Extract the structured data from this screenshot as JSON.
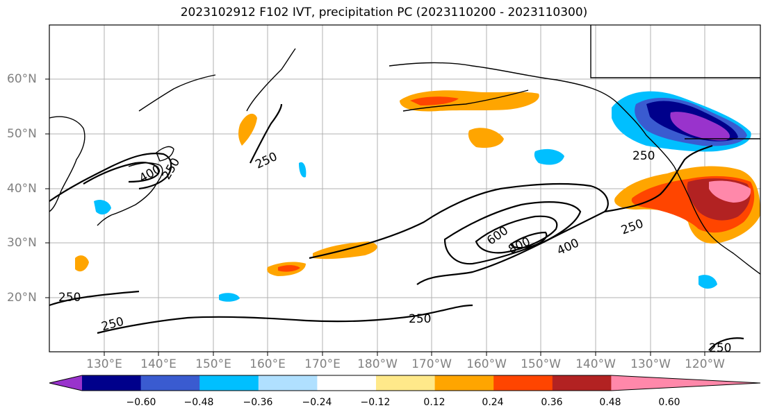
{
  "title": "2023102912 F102 IVT, precipitation PC (2023110200 - 2023110300)",
  "lon_labels": [
    "130°E",
    "140°E",
    "150°E",
    "160°E",
    "170°E",
    "180°W",
    "170°W",
    "160°W",
    "150°W",
    "140°W",
    "130°W",
    "120°W"
  ],
  "lat_labels": [
    "60°N",
    "50°N",
    "40°N",
    "30°N",
    "20°N"
  ],
  "colorbar": {
    "colors": [
      "#9933cc",
      "#00008b",
      "#3a5bd0",
      "#00bfff",
      "#b0e0ff",
      "#ffffff",
      "#ffe98a",
      "#ffa500",
      "#ff4500",
      "#b22222",
      "#ff88aa"
    ],
    "tick_labels": [
      "−0.60",
      "−0.48",
      "−0.36",
      "−0.24",
      "−0.12",
      "0.12",
      "0.24",
      "0.36",
      "0.48",
      "0.60"
    ]
  },
  "contour_labels": [
    "250",
    "400",
    "250",
    "250",
    "250",
    "250",
    "250",
    "600",
    "800",
    "400",
    "250",
    "250"
  ],
  "colors": {
    "coast": "#000000",
    "grid": "#b0b0b0",
    "contour": "#000000"
  }
}
